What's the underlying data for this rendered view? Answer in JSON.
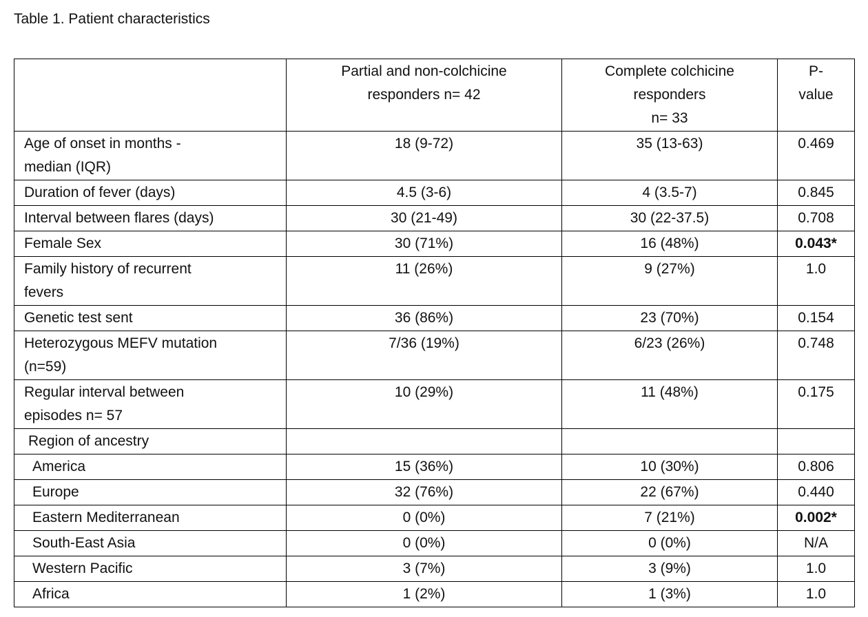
{
  "title": "Table 1. Patient characteristics",
  "table": {
    "header": [
      [
        "Partial and non-colchicine",
        "responders n= 42"
      ],
      [
        "Complete colchicine",
        "responders",
        "n= 33"
      ],
      [
        "P-",
        "value"
      ]
    ],
    "rows": [
      {
        "label": [
          "Age of onset in months -",
          "median (IQR)"
        ],
        "partial": "18 (9-72)",
        "complete": "35 (13-63)",
        "p": "0.469"
      },
      {
        "label": [
          "Duration of fever (days)"
        ],
        "partial": "4.5 (3-6)",
        "complete": "4 (3.5-7)",
        "p": "0.845"
      },
      {
        "label": [
          "Interval between flares (days)"
        ],
        "partial": "30 (21-49)",
        "complete": "30 (22-37.5)",
        "p": "0.708"
      },
      {
        "label": [
          "Female Sex"
        ],
        "partial": "30 (71%)",
        "complete": "16 (48%)",
        "p": "0.043*",
        "significant": true
      },
      {
        "label": [
          "Family history of recurrent",
          "fevers"
        ],
        "partial": "11 (26%)",
        "complete": "9 (27%)",
        "p": "1.0"
      },
      {
        "label": [
          "Genetic test sent"
        ],
        "partial": "36 (86%)",
        "complete": "23 (70%)",
        "p": "0.154"
      },
      {
        "label": [
          "Heterozygous MEFV mutation",
          "(n=59)"
        ],
        "partial": "7/36 (19%)",
        "complete": "6/23 (26%)",
        "p": "0.748"
      },
      {
        "label": [
          "Regular interval between",
          "episodes n= 57"
        ],
        "partial": "10 (29%)",
        "complete": "11 (48%)",
        "p": "0.175"
      }
    ],
    "region": {
      "label": "Region of ancestry",
      "rows": [
        {
          "label": [
            "America"
          ],
          "partial": "15 (36%)",
          "complete": "10 (30%)",
          "p": "0.806"
        },
        {
          "label": [
            "Europe"
          ],
          "partial": "32 (76%)",
          "complete": "22 (67%)",
          "p": "0.440"
        },
        {
          "label": [
            "Eastern Mediterranean"
          ],
          "partial": "0 (0%)",
          "complete": "7 (21%)",
          "p": "0.002*",
          "significant": true
        },
        {
          "label": [
            "South-East Asia"
          ],
          "partial": "0 (0%)",
          "complete": "0 (0%)",
          "p": "N/A"
        },
        {
          "label": [
            "Western Pacific"
          ],
          "partial": "3 (7%)",
          "complete": "3 (9%)",
          "p": "1.0"
        },
        {
          "label": [
            "Africa"
          ],
          "partial": "1 (2%)",
          "complete": "1 (3%)",
          "p": "1.0"
        }
      ]
    }
  }
}
